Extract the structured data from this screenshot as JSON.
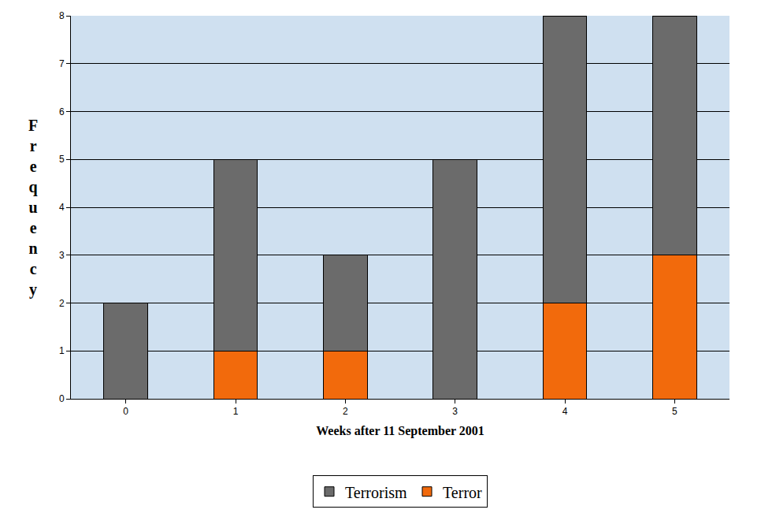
{
  "chart_data": {
    "type": "bar",
    "stacked": true,
    "x_label": "Weeks after 11 September 2001",
    "y_label": "Frequency",
    "categories": [
      "0",
      "1",
      "2",
      "3",
      "4",
      "5"
    ],
    "series": [
      {
        "name": "Terror",
        "color": "#f26a0c",
        "values": [
          0,
          1,
          1,
          0,
          2,
          3
        ]
      },
      {
        "name": "Terrorism",
        "color": "#6b6b6b",
        "values": [
          2,
          4,
          2,
          5,
          6,
          5
        ]
      }
    ],
    "ylim": [
      0,
      8
    ],
    "yticks": [
      0,
      1,
      2,
      3,
      4,
      5,
      6,
      7,
      8
    ],
    "grid": true,
    "legend": "bottom"
  }
}
